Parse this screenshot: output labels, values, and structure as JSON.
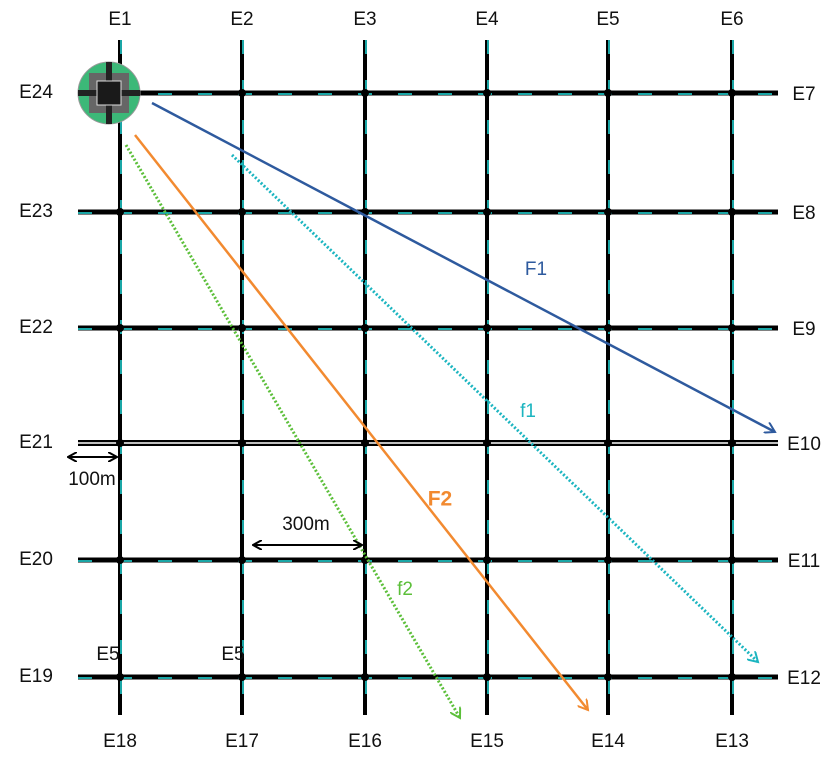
{
  "top_labels": [
    "E1",
    "E2",
    "E3",
    "E4",
    "E5",
    "E6"
  ],
  "bottom_labels": [
    "E18",
    "E17",
    "E16",
    "E15",
    "E14",
    "E13"
  ],
  "left_labels": [
    "E24",
    "E23",
    "E22",
    "E21",
    "E20",
    "E19"
  ],
  "right_labels": [
    "E7",
    "E8",
    "E9",
    "E10",
    "E11",
    "E12"
  ],
  "flows": [
    {
      "label": "F1"
    },
    {
      "label": "F2"
    },
    {
      "label": "f1"
    },
    {
      "label": "f2"
    }
  ],
  "distances": [
    {
      "label": "100m"
    },
    {
      "label": "300m"
    }
  ],
  "road_labels": [
    "E5",
    "E5"
  ]
}
